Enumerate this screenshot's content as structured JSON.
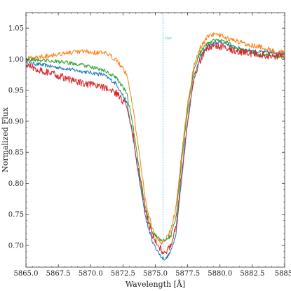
{
  "chart_data": {
    "type": "line",
    "title": "",
    "xlabel": "Wavelength [Å]",
    "ylabel": "Normalized Flux",
    "xlim": [
      5865.0,
      5885.0
    ],
    "ylim": [
      0.665,
      1.075
    ],
    "x_ticks": [
      5865.0,
      5867.5,
      5870.0,
      5872.5,
      5875.0,
      5877.5,
      5880.0,
      5882.5,
      5885.0
    ],
    "x_tick_labels": [
      "5865.0",
      "5867.5",
      "5870.0",
      "5872.5",
      "5875.0",
      "5877.5",
      "5880.0",
      "5882.5",
      "5885."
    ],
    "y_ticks": [
      0.7,
      0.75,
      0.8,
      0.85,
      0.9,
      0.95,
      1.0,
      1.05
    ],
    "y_tick_labels": [
      "0.70",
      "0.75",
      "0.80",
      "0.85",
      "0.90",
      "0.95",
      "1.00",
      "1.05"
    ],
    "grid": false,
    "legend": "none",
    "reference_line": {
      "x": 5875.6,
      "label": "HeI",
      "color": "#17becf"
    },
    "series": [
      {
        "color": "#1f77b4",
        "x": [
          5865.0,
          5866.5,
          5868.0,
          5869.5,
          5871.0,
          5872.0,
          5872.8,
          5873.3,
          5873.8,
          5874.3,
          5874.8,
          5875.2,
          5875.5,
          5875.8,
          5876.2,
          5876.6,
          5877.0,
          5877.5,
          5878.0,
          5878.5,
          5879.0,
          5879.5,
          5880.0,
          5880.5,
          5881.0,
          5882.0,
          5883.0,
          5884.0,
          5885.0
        ],
        "y": [
          0.995,
          0.99,
          0.985,
          0.98,
          0.975,
          0.96,
          0.93,
          0.87,
          0.8,
          0.74,
          0.705,
          0.69,
          0.68,
          0.678,
          0.69,
          0.72,
          0.8,
          0.9,
          0.97,
          1.005,
          1.02,
          1.025,
          1.028,
          1.025,
          1.02,
          1.015,
          1.012,
          1.01,
          1.01
        ]
      },
      {
        "color": "#ff7f0e",
        "x": [
          5865.0,
          5866.5,
          5868.0,
          5869.5,
          5871.0,
          5872.0,
          5872.8,
          5873.3,
          5873.8,
          5874.3,
          5874.8,
          5875.2,
          5875.5,
          5875.8,
          5876.2,
          5876.6,
          5877.0,
          5877.5,
          5878.0,
          5878.5,
          5879.0,
          5879.5,
          5880.0,
          5880.5,
          5881.0,
          5882.0,
          5883.0,
          5884.0,
          5885.0
        ],
        "y": [
          1.0,
          1.005,
          1.01,
          1.012,
          1.01,
          1.0,
          0.975,
          0.92,
          0.84,
          0.765,
          0.725,
          0.71,
          0.705,
          0.71,
          0.725,
          0.76,
          0.84,
          0.93,
          0.99,
          1.02,
          1.035,
          1.04,
          1.038,
          1.035,
          1.03,
          1.025,
          1.02,
          1.015,
          1.01
        ]
      },
      {
        "color": "#2ca02c",
        "x": [
          5865.0,
          5866.5,
          5868.0,
          5869.5,
          5871.0,
          5872.0,
          5872.8,
          5873.3,
          5873.8,
          5874.3,
          5874.8,
          5875.2,
          5875.5,
          5875.8,
          5876.2,
          5876.6,
          5877.0,
          5877.5,
          5878.0,
          5878.5,
          5879.0,
          5879.5,
          5880.0,
          5880.5,
          5881.0,
          5882.0,
          5883.0,
          5884.0,
          5885.0
        ],
        "y": [
          1.0,
          0.998,
          0.995,
          0.99,
          0.982,
          0.97,
          0.945,
          0.89,
          0.815,
          0.755,
          0.72,
          0.712,
          0.708,
          0.71,
          0.715,
          0.745,
          0.83,
          0.92,
          0.985,
          1.012,
          1.025,
          1.03,
          1.03,
          1.028,
          1.02,
          1.012,
          1.008,
          1.005,
          1.003
        ]
      },
      {
        "color": "#d62728",
        "x": [
          5865.0,
          5866.5,
          5868.0,
          5869.5,
          5871.0,
          5872.0,
          5872.8,
          5873.3,
          5873.8,
          5874.3,
          5874.8,
          5875.2,
          5875.5,
          5875.8,
          5876.2,
          5876.6,
          5877.0,
          5877.5,
          5878.0,
          5878.5,
          5879.0,
          5879.5,
          5880.0,
          5880.5,
          5881.0,
          5882.0,
          5883.0,
          5884.0,
          5885.0
        ],
        "y": [
          0.99,
          0.98,
          0.97,
          0.96,
          0.955,
          0.945,
          0.925,
          0.875,
          0.805,
          0.75,
          0.715,
          0.7,
          0.692,
          0.69,
          0.7,
          0.73,
          0.81,
          0.905,
          0.97,
          1.0,
          1.018,
          1.022,
          1.02,
          1.018,
          1.015,
          1.01,
          1.008,
          1.005,
          1.005
        ]
      }
    ]
  }
}
